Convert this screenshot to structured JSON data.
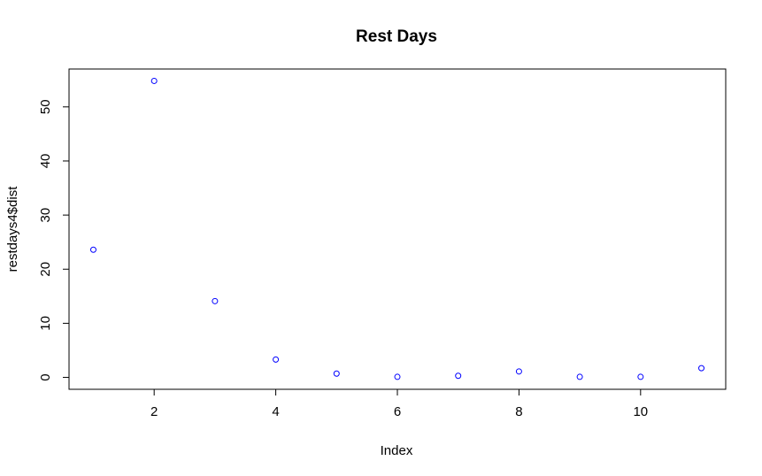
{
  "chart_data": {
    "type": "scatter",
    "title": "Rest Days",
    "xlabel": "Index",
    "ylabel": "restdays4$dist",
    "xlim": [
      0.6,
      11.4
    ],
    "ylim": [
      -2.2,
      57
    ],
    "x_ticks": [
      2,
      4,
      6,
      8,
      10
    ],
    "y_ticks": [
      0,
      10,
      20,
      30,
      40,
      50
    ],
    "grid": false,
    "legend": "none",
    "point_color": "#0000ff",
    "point_style": "open-circle",
    "points": [
      {
        "x": 1,
        "y": 23.6
      },
      {
        "x": 2,
        "y": 54.8
      },
      {
        "x": 3,
        "y": 14.1
      },
      {
        "x": 4,
        "y": 3.3
      },
      {
        "x": 5,
        "y": 0.7
      },
      {
        "x": 6,
        "y": 0.1
      },
      {
        "x": 7,
        "y": 0.3
      },
      {
        "x": 8,
        "y": 1.1
      },
      {
        "x": 9,
        "y": 0.1
      },
      {
        "x": 10,
        "y": 0.1
      },
      {
        "x": 11,
        "y": 1.7
      }
    ]
  }
}
